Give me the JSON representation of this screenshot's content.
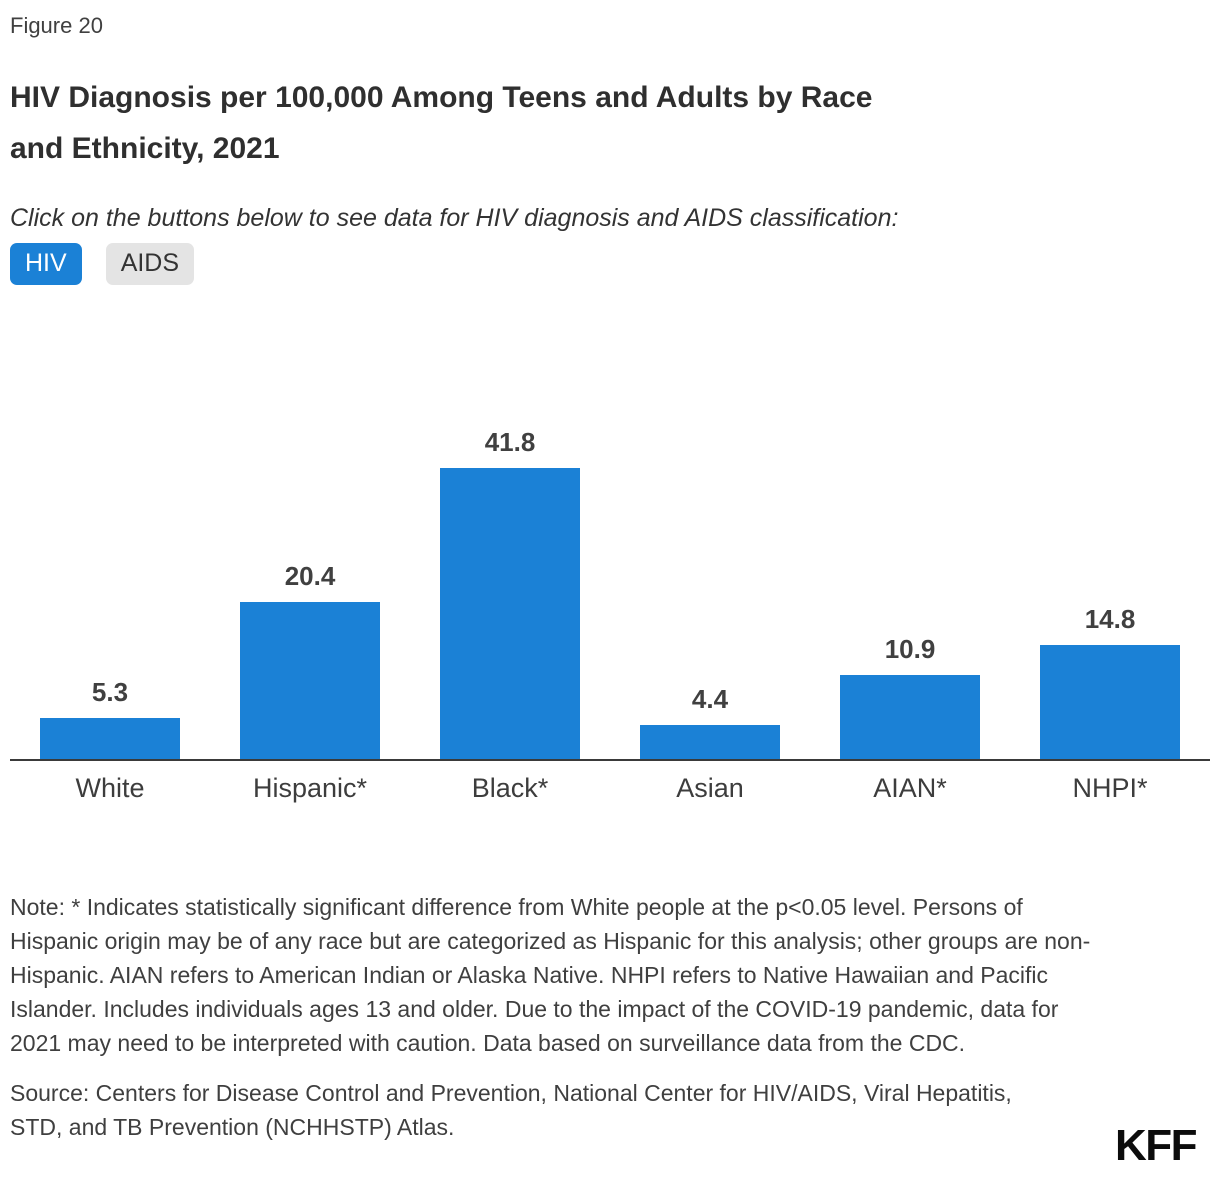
{
  "figure_label": "Figure 20",
  "title": "HIV Diagnosis per 100,000 Among Teens and Adults by Race\nand Ethnicity, 2021",
  "subtitle": "Click on the buttons below to see data for HIV diagnosis and AIDS classification:",
  "buttons": {
    "hiv": "HIV",
    "aids": "AIDS"
  },
  "colors": {
    "bar": "#1B81D6",
    "active_button_bg": "#1B81D6",
    "active_button_text": "#FFFFFF",
    "inactive_button_bg": "#E4E4E4",
    "inactive_button_text": "#333333",
    "axis": "#3A3A3A",
    "text": "#3F3F3F"
  },
  "chart_data": {
    "type": "bar",
    "categories": [
      "White",
      "Hispanic*",
      "Black*",
      "Asian",
      "AIAN*",
      "NHPI*"
    ],
    "values": [
      5.3,
      20.4,
      41.8,
      4.4,
      10.9,
      14.8
    ],
    "title": "HIV Diagnosis per 100,000 Among Teens and Adults by Race and Ethnicity, 2021",
    "xlabel": "",
    "ylabel": "",
    "ylim": [
      0,
      45
    ],
    "grid": false,
    "legend": false,
    "data_labels": true,
    "bar_color": "#1B81D6"
  },
  "note": "Note: * Indicates statistically significant difference from White people at the p<0.05 level. Persons of Hispanic origin may be of any race but are categorized as Hispanic for this analysis; other groups are non-Hispanic. AIAN refers to American Indian or Alaska Native. NHPI refers to Native Hawaiian and Pacific Islander. Includes individuals ages 13 and older. Due to the impact of the COVID-19 pandemic, data for 2021 may need to be interpreted with caution. Data based on surveillance data from the CDC.",
  "source": "Source: Centers for Disease Control and Prevention, National Center for HIV/AIDS, Viral Hepatitis, STD, and TB Prevention (NCHHSTP) Atlas.",
  "logo": "KFF"
}
